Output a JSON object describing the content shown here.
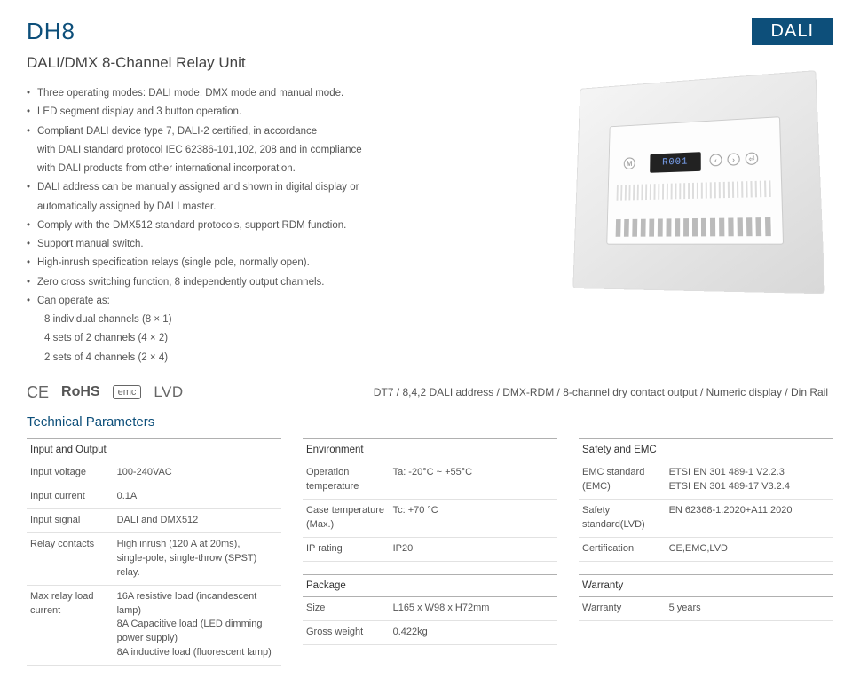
{
  "header": {
    "product_code": "DH8",
    "badge": "DALI",
    "subtitle": "DALI/DMX 8-Channel Relay Unit"
  },
  "features": [
    {
      "text": "Three operating modes: DALI mode, DMX mode and manual mode."
    },
    {
      "text": "LED segment display and 3 button operation."
    },
    {
      "text": "Compliant DALI device type 7, DALI-2 certified, in accordance"
    },
    {
      "text": "with DALI standard protocol IEC 62386-101,102, 208 and in compliance",
      "nobullet": true
    },
    {
      "text": "with DALI products from other international incorporation.",
      "nobullet": true
    },
    {
      "text": "DALI address can be manually assigned and shown in digital display or"
    },
    {
      "text": "automatically assigned by DALI master.",
      "nobullet": true
    },
    {
      "text": "Comply with the DMX512 standard protocols, support RDM function."
    },
    {
      "text": "Support manual switch."
    },
    {
      "text": "High-inrush specification relays (single pole, normally open)."
    },
    {
      "text": "Zero cross switching function, 8 independently output channels."
    },
    {
      "text": "Can operate as:"
    },
    {
      "text": "8 individual channels (8 × 1)",
      "sub": true
    },
    {
      "text": "4 sets of 2 channels (4 × 2)",
      "sub": true
    },
    {
      "text": "2 sets of 4 channels (2 × 4)",
      "sub": true
    }
  ],
  "device_display": "R001",
  "certs": {
    "ce": "CE",
    "rohs": "RoHS",
    "emc": "emc",
    "lvd": "LVD"
  },
  "summary_line": "DT7 / 8,4,2 DALI address  / DMX-RDM / 8-channel dry contact output / Numeric display / Din Rail",
  "tech_heading": "Technical Parameters",
  "tables": {
    "io": {
      "title": "Input and Output",
      "rows": [
        [
          "Input voltage",
          "100-240VAC"
        ],
        [
          "Input current",
          "0.1A"
        ],
        [
          "Input signal",
          "DALI and DMX512"
        ],
        [
          "Relay contacts",
          "High inrush (120 A at 20ms),\nsingle-pole, single-throw (SPST) relay."
        ],
        [
          "Max relay load current",
          "16A resistive load (incandescent lamp)\n8A Capacitive load (LED dimming power supply)\n8A inductive load (fluorescent lamp)"
        ]
      ]
    },
    "env": {
      "title": "Environment",
      "rows": [
        [
          "Operation temperature",
          "Ta: -20°C ~ +55°C"
        ],
        [
          "Case temperature (Max.)",
          "Tc: +70 °C"
        ],
        [
          "IP rating",
          "IP20"
        ]
      ]
    },
    "pkg": {
      "title": "Package",
      "rows": [
        [
          "Size",
          "L165 x W98 x H72mm"
        ],
        [
          "Gross weight",
          "0.422kg"
        ]
      ]
    },
    "safety": {
      "title": "Safety and EMC",
      "rows": [
        [
          "EMC standard (EMC)",
          "ETSI EN 301 489-1 V2.2.3\nETSI EN 301 489-17 V3.2.4"
        ],
        [
          "Safety standard(LVD)",
          "EN 62368-1:2020+A11:2020"
        ],
        [
          "Certification",
          "CE,EMC,LVD"
        ]
      ]
    },
    "warranty": {
      "title": "Warranty",
      "rows": [
        [
          "Warranty",
          "5 years"
        ]
      ]
    }
  }
}
